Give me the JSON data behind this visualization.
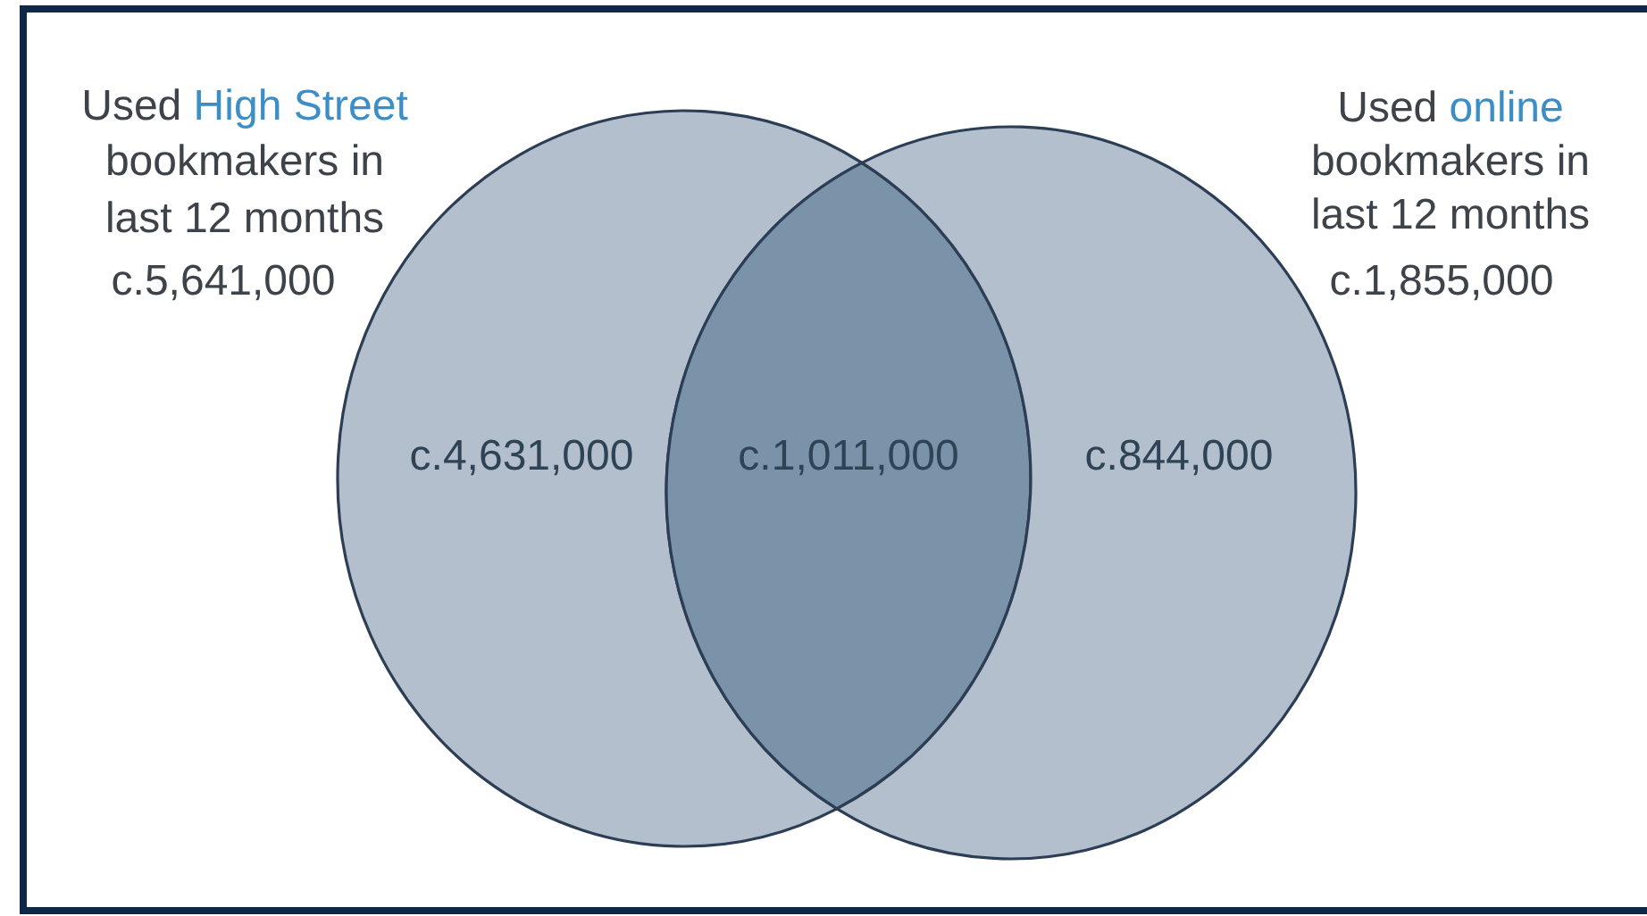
{
  "chart_data": {
    "type": "other",
    "categories": [
      null,
      null,
      null
    ],
    "values": [
      4631000,
      1011000,
      844000
    ],
    "value_labels": [
      "c.4,631,000",
      "c.1,011,000",
      "c.844,000"
    ],
    "colors": [
      "#b3bfcc",
      "#7a93a8",
      "#b3bfcc"
    ],
    "annotations": [
      "Used High Street bookmakers in last 12 months",
      "c.5,641,000",
      "Used online bookmakers in last 12 months",
      "c.1,855,000"
    ]
  }
}
